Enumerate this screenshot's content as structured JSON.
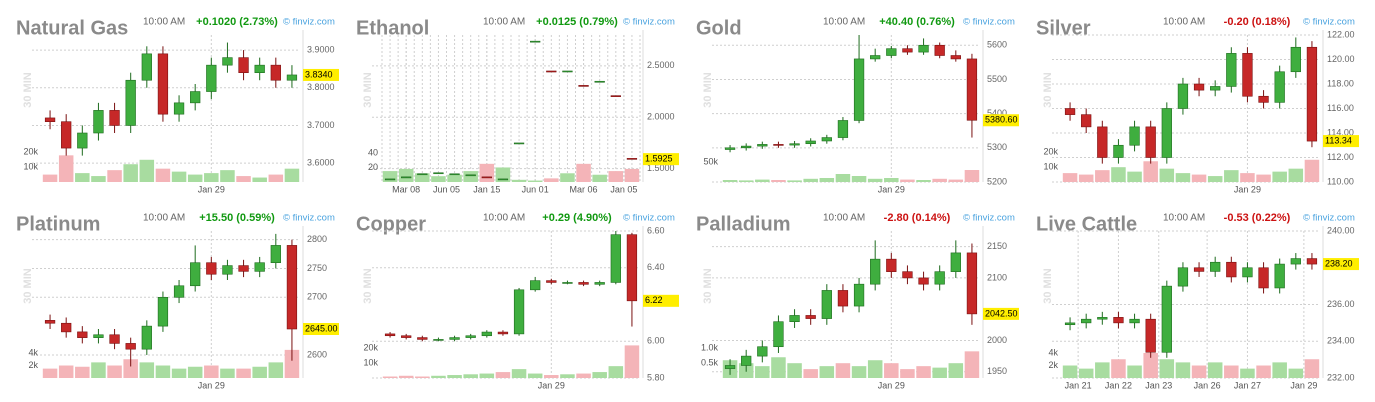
{
  "chart_data": [
    {
      "type": "candlestick",
      "title": "Natural Gas",
      "time": "10:00 AM",
      "change": "+0.1020 (2.73%)",
      "change_color": "#119911",
      "source": "© finviz.com",
      "interval": "30 MIN",
      "up_color": "#3fae3f",
      "down_color": "#c62828",
      "volume_up_color": "#a8dca0",
      "volume_down_color": "#f4b4b8",
      "ylim": [
        3.55,
        3.94
      ],
      "yticks": [
        {
          "value": 3.6,
          "label": "3.6000"
        },
        {
          "value": 3.7,
          "label": "3.7000"
        },
        {
          "value": 3.8,
          "label": "3.8000"
        },
        {
          "value": 3.9,
          "label": "3.9000"
        }
      ],
      "xticks": [
        {
          "value": 10,
          "label": "Jan 29"
        }
      ],
      "last_price": {
        "value": 3.834,
        "label": "3.8340"
      },
      "volume_ylim": [
        0,
        27000
      ],
      "volume_yticks": [
        {
          "value": 10000,
          "label": "10k"
        },
        {
          "value": 20000,
          "label": "20k"
        }
      ],
      "open": [
        3.72,
        3.71,
        3.64,
        3.68,
        3.74,
        3.7,
        3.82,
        3.89,
        3.73,
        3.76,
        3.79,
        3.86,
        3.88,
        3.84,
        3.86,
        3.82
      ],
      "high": [
        3.74,
        3.73,
        3.7,
        3.76,
        3.76,
        3.84,
        3.91,
        3.91,
        3.78,
        3.81,
        3.88,
        3.92,
        3.9,
        3.88,
        3.88,
        3.86
      ],
      "low": [
        3.69,
        3.62,
        3.62,
        3.66,
        3.68,
        3.68,
        3.8,
        3.71,
        3.71,
        3.74,
        3.77,
        3.84,
        3.82,
        3.82,
        3.8,
        3.8
      ],
      "close": [
        3.71,
        3.64,
        3.68,
        3.74,
        3.7,
        3.82,
        3.89,
        3.73,
        3.76,
        3.79,
        3.86,
        3.88,
        3.84,
        3.86,
        3.82,
        3.834
      ],
      "volume": [
        5000,
        18000,
        6000,
        4000,
        8000,
        12000,
        15000,
        9000,
        7000,
        5000,
        6000,
        8000,
        4000,
        3000,
        5000,
        9000
      ]
    },
    {
      "type": "candlestick",
      "title": "Ethanol",
      "time": "10:00 AM",
      "change": "+0.0125 (0.79%)",
      "change_color": "#119911",
      "source": "© finviz.com",
      "interval": "30 MIN",
      "up_color": "#3fae3f",
      "down_color": "#c62828",
      "volume_up_color": "#a8dca0",
      "volume_down_color": "#f4b4b8",
      "x_grid_dense": true,
      "ylim": [
        1.37,
        2.8
      ],
      "yticks": [
        {
          "value": 1.5,
          "label": "1.5000"
        },
        {
          "value": 2.0,
          "label": "2.0000"
        },
        {
          "value": 2.5,
          "label": "2.5000"
        }
      ],
      "xticks": [
        {
          "value": 1,
          "label": "Mar 08"
        },
        {
          "value": 3.5,
          "label": "Jun 05"
        },
        {
          "value": 6,
          "label": "Jan 15"
        },
        {
          "value": 9,
          "label": "Jun 01"
        },
        {
          "value": 12,
          "label": "Mar 06"
        },
        {
          "value": 14.5,
          "label": "Jan 05"
        }
      ],
      "last_price": {
        "value": 1.5925,
        "label": "1.5925"
      },
      "volume_ylim": [
        0,
        55
      ],
      "volume_yticks": [
        20,
        40
      ],
      "open": [
        1.4,
        1.41,
        1.45,
        1.46,
        1.45,
        1.44,
        1.42,
        1.4,
        1.75,
        2.74,
        2.45,
        2.45,
        2.31,
        2.35,
        2.21,
        1.6
      ],
      "high": [
        1.4,
        1.42,
        1.45,
        1.46,
        1.45,
        1.44,
        1.42,
        1.4,
        1.75,
        2.74,
        2.45,
        2.45,
        2.31,
        2.35,
        2.21,
        1.6
      ],
      "low": [
        1.4,
        1.41,
        1.45,
        1.46,
        1.45,
        1.44,
        1.41,
        1.4,
        1.75,
        2.74,
        2.44,
        2.45,
        2.3,
        2.35,
        2.2,
        1.5925
      ],
      "close": [
        1.4,
        1.42,
        1.45,
        1.46,
        1.45,
        1.44,
        1.41,
        1.4,
        1.75,
        2.74,
        2.44,
        2.45,
        2.3,
        2.35,
        2.2,
        1.5925
      ],
      "volume": [
        15,
        18,
        12,
        8,
        10,
        15,
        25,
        20,
        3,
        2,
        5,
        12,
        25,
        10,
        15,
        18
      ]
    },
    {
      "type": "candlestick",
      "title": "Gold",
      "time": "10:00 AM",
      "change": "+40.40 (0.76%)",
      "change_color": "#119911",
      "source": "© finviz.com",
      "interval": "30 MIN",
      "up_color": "#3fae3f",
      "down_color": "#c62828",
      "volume_up_color": "#a8dca0",
      "volume_down_color": "#f4b4b8",
      "ylim": [
        5200,
        5630
      ],
      "yticks": [
        5200,
        5300,
        5400,
        5500,
        5600
      ],
      "xticks": [
        {
          "value": 10,
          "label": "Jan 29"
        }
      ],
      "last_price": {
        "value": 5380.6,
        "label": "5380.60"
      },
      "volume_ylim": [
        0,
        100000
      ],
      "volume_yticks": [
        {
          "value": 50000,
          "label": "50k"
        }
      ],
      "open": [
        5295,
        5300,
        5305,
        5310,
        5308,
        5312,
        5320,
        5330,
        5380,
        5560,
        5570,
        5590,
        5580,
        5600,
        5570,
        5560
      ],
      "high": [
        5308,
        5313,
        5318,
        5318,
        5320,
        5328,
        5338,
        5390,
        5630,
        5590,
        5598,
        5600,
        5620,
        5608,
        5585,
        5575
      ],
      "low": [
        5287,
        5292,
        5297,
        5300,
        5300,
        5304,
        5312,
        5322,
        5372,
        5552,
        5562,
        5572,
        5572,
        5562,
        5552,
        5330
      ],
      "close": [
        5300,
        5305,
        5310,
        5308,
        5312,
        5320,
        5330,
        5380,
        5560,
        5570,
        5590,
        5580,
        5600,
        5570,
        5560,
        5380.6
      ],
      "volume": [
        5000,
        4000,
        6000,
        5000,
        4000,
        8000,
        10000,
        20000,
        15000,
        8000,
        10000,
        6000,
        5000,
        8000,
        6000,
        30000
      ]
    },
    {
      "type": "candlestick",
      "title": "Silver",
      "time": "10:00 AM",
      "change": "-0.20 (0.18%)",
      "change_color": "#cc1111",
      "source": "© finviz.com",
      "interval": "30 MIN",
      "up_color": "#3fae3f",
      "down_color": "#c62828",
      "volume_up_color": "#a8dca0",
      "volume_down_color": "#f4b4b8",
      "ylim": [
        110,
        122
      ],
      "yticks": [
        {
          "value": 110,
          "label": "110.00"
        },
        {
          "value": 112,
          "label": "112.00"
        },
        {
          "value": 114,
          "label": "114.00"
        },
        {
          "value": 116,
          "label": "116.00"
        },
        {
          "value": 118,
          "label": "118.00"
        },
        {
          "value": 120,
          "label": "120.00"
        },
        {
          "value": 122,
          "label": "122.00"
        }
      ],
      "xticks": [
        {
          "value": 11,
          "label": "Jan 29"
        }
      ],
      "last_price": {
        "value": 113.34,
        "label": "113.34"
      },
      "volume_ylim": [
        0,
        27000
      ],
      "volume_yticks": [
        {
          "value": 10000,
          "label": "10k"
        },
        {
          "value": 20000,
          "label": "20k"
        }
      ],
      "open": [
        116,
        115.5,
        114.5,
        112,
        113,
        114.5,
        112,
        116,
        118,
        117.5,
        117.8,
        120.5,
        117,
        116.5,
        119,
        121
      ],
      "high": [
        116.5,
        116,
        115,
        113.5,
        115,
        115,
        116.5,
        118.5,
        118.5,
        118.3,
        121,
        121,
        117.5,
        119.5,
        121.8,
        121.5
      ],
      "low": [
        115,
        114,
        111.5,
        111.5,
        112.5,
        111.5,
        111.5,
        115.5,
        117,
        117,
        117.3,
        116.5,
        116,
        116,
        118.5,
        112.84
      ],
      "close": [
        115.5,
        114.5,
        112,
        113,
        114.5,
        112,
        116,
        118,
        117.5,
        117.8,
        120.5,
        117,
        116.5,
        119,
        121,
        113.34
      ],
      "volume": [
        6000,
        5000,
        8000,
        10000,
        7000,
        14000,
        9000,
        6000,
        5000,
        4000,
        8000,
        6000,
        5000,
        7000,
        9000,
        15000
      ]
    },
    {
      "type": "candlestick",
      "title": "Platinum",
      "time": "10:00 AM",
      "change": "+15.50 (0.59%)",
      "change_color": "#119911",
      "source": "© finviz.com",
      "interval": "30 MIN",
      "up_color": "#3fae3f",
      "down_color": "#c62828",
      "volume_up_color": "#a8dca0",
      "volume_down_color": "#f4b4b8",
      "ylim": [
        2560,
        2815
      ],
      "yticks": [
        2600,
        2700,
        2750,
        2800
      ],
      "xticks": [
        {
          "value": 10,
          "label": "Jan 29"
        }
      ],
      "last_price": {
        "value": 2645,
        "label": "2645.00"
      },
      "volume_ylim": [
        0,
        6400
      ],
      "volume_yticks": [
        {
          "value": 2000,
          "label": "2k"
        },
        {
          "value": 4000,
          "label": "4k"
        }
      ],
      "open": [
        2660,
        2655,
        2640,
        2630,
        2635,
        2620,
        2610,
        2650,
        2700,
        2720,
        2760,
        2740,
        2755,
        2745,
        2760,
        2790
      ],
      "high": [
        2670,
        2665,
        2650,
        2645,
        2645,
        2630,
        2660,
        2710,
        2730,
        2790,
        2770,
        2765,
        2765,
        2770,
        2810,
        2800
      ],
      "low": [
        2645,
        2630,
        2620,
        2620,
        2610,
        2580,
        2600,
        2640,
        2690,
        2710,
        2730,
        2730,
        2735,
        2735,
        2750,
        2590
      ],
      "close": [
        2655,
        2640,
        2630,
        2635,
        2620,
        2610,
        2650,
        2700,
        2720,
        2760,
        2740,
        2755,
        2745,
        2760,
        2790,
        2645
      ],
      "volume": [
        1500,
        2000,
        1800,
        2500,
        2000,
        3000,
        2500,
        2000,
        1500,
        1800,
        2000,
        1500,
        1500,
        1800,
        2500,
        4500
      ]
    },
    {
      "type": "candlestick",
      "title": "Copper",
      "time": "10:00 AM",
      "change": "+0.29 (4.90%)",
      "change_color": "#119911",
      "source": "© finviz.com",
      "interval": "30 MIN",
      "up_color": "#3fae3f",
      "down_color": "#c62828",
      "volume_up_color": "#a8dca0",
      "volume_down_color": "#f4b4b8",
      "ylim": [
        5.8,
        6.6
      ],
      "yticks": [
        {
          "value": 5.8,
          "label": "5.80"
        },
        {
          "value": 6.0,
          "label": "6.00"
        },
        {
          "value": 6.4,
          "label": "6.40"
        },
        {
          "value": 6.6,
          "label": "6.60"
        }
      ],
      "xticks": [
        {
          "value": 10,
          "label": "Jan 29"
        }
      ],
      "last_price": {
        "value": 6.22,
        "label": "6.22"
      },
      "volume_ylim": [
        0,
        27000
      ],
      "volume_yticks": [
        {
          "value": 10000,
          "label": "10k"
        },
        {
          "value": 20000,
          "label": "20k"
        }
      ],
      "open": [
        6.04,
        6.03,
        6.02,
        6.01,
        6.01,
        6.02,
        6.03,
        6.05,
        6.04,
        6.28,
        6.33,
        6.32,
        6.32,
        6.31,
        6.32,
        6.58
      ],
      "high": [
        6.05,
        6.04,
        6.03,
        6.02,
        6.03,
        6.04,
        6.06,
        6.06,
        6.29,
        6.35,
        6.34,
        6.33,
        6.33,
        6.33,
        6.6,
        6.59
      ],
      "low": [
        6.02,
        6.01,
        6.0,
        6.0,
        6.0,
        6.01,
        6.02,
        6.03,
        6.03,
        6.27,
        6.31,
        6.31,
        6.3,
        6.3,
        6.31,
        6.08
      ],
      "close": [
        6.03,
        6.02,
        6.01,
        6.01,
        6.02,
        6.03,
        6.05,
        6.04,
        6.28,
        6.33,
        6.32,
        6.32,
        6.31,
        6.32,
        6.58,
        6.22
      ],
      "volume": [
        1000,
        1500,
        1000,
        1500,
        2000,
        2500,
        3000,
        4000,
        6000,
        3000,
        2000,
        2500,
        3000,
        4000,
        8000,
        22000
      ]
    },
    {
      "type": "candlestick",
      "title": "Palladium",
      "time": "10:00 AM",
      "change": "-2.80 (0.14%)",
      "change_color": "#cc1111",
      "source": "© finviz.com",
      "interval": "30 MIN",
      "up_color": "#3fae3f",
      "down_color": "#c62828",
      "volume_up_color": "#a8dca0",
      "volume_down_color": "#f4b4b8",
      "ylim": [
        1940,
        2175
      ],
      "yticks": [
        1950,
        2000,
        2100,
        2150
      ],
      "xticks": [
        {
          "value": 10,
          "label": "Jan 29"
        }
      ],
      "last_price": {
        "value": 2042.5,
        "label": "2042.50"
      },
      "volume_ylim": [
        0,
        1350
      ],
      "volume_yticks": [
        {
          "value": 500,
          "label": "0.5k"
        },
        {
          "value": 1000,
          "label": "1.0k"
        }
      ],
      "open": [
        1955,
        1960,
        1975,
        1990,
        2030,
        2040,
        2035,
        2080,
        2055,
        2090,
        2130,
        2110,
        2100,
        2090,
        2110,
        2140
      ],
      "high": [
        1970,
        1985,
        2000,
        2040,
        2050,
        2050,
        2090,
        2090,
        2100,
        2160,
        2140,
        2120,
        2110,
        2120,
        2160,
        2155
      ],
      "low": [
        1945,
        1950,
        1965,
        1980,
        2020,
        2025,
        2025,
        2045,
        2045,
        2080,
        2100,
        2090,
        2080,
        2080,
        2100,
        2025
      ],
      "close": [
        1960,
        1975,
        1990,
        2030,
        2040,
        2035,
        2080,
        2055,
        2090,
        2130,
        2110,
        2100,
        2090,
        2110,
        2140,
        2042.5
      ],
      "volume": [
        600,
        500,
        400,
        700,
        500,
        300,
        400,
        500,
        400,
        600,
        500,
        300,
        400,
        350,
        500,
        900
      ]
    },
    {
      "type": "candlestick",
      "title": "Live Cattle",
      "time": "10:00 AM",
      "change": "-0.53 (0.22%)",
      "change_color": "#cc1111",
      "source": "© finviz.com",
      "interval": "30 MIN",
      "up_color": "#3fae3f",
      "down_color": "#c62828",
      "volume_up_color": "#a8dca0",
      "volume_down_color": "#f4b4b8",
      "ylim": [
        232,
        240
      ],
      "yticks": [
        {
          "value": 232,
          "label": "232.00"
        },
        {
          "value": 234,
          "label": "234.00"
        },
        {
          "value": 236,
          "label": "236.00"
        },
        {
          "value": 240,
          "label": "240.00"
        }
      ],
      "xticks": [
        {
          "value": 0.5,
          "label": "Jan 21"
        },
        {
          "value": 3,
          "label": "Jan 22"
        },
        {
          "value": 5.5,
          "label": "Jan 23"
        },
        {
          "value": 8.5,
          "label": "Jan 26"
        },
        {
          "value": 11,
          "label": "Jan 27"
        },
        {
          "value": 14.5,
          "label": "Jan 29"
        }
      ],
      "last_price": {
        "value": 238.2,
        "label": "238.20"
      },
      "volume_ylim": [
        0,
        6400
      ],
      "volume_yticks": [
        {
          "value": 2000,
          "label": "2k"
        },
        {
          "value": 4000,
          "label": "4k"
        }
      ],
      "open": [
        234.9,
        235.0,
        235.2,
        235.3,
        235.0,
        235.2,
        233.4,
        237.0,
        238.0,
        237.8,
        238.3,
        237.5,
        238.0,
        236.9,
        238.2,
        238.5
      ],
      "high": [
        235.3,
        235.5,
        235.6,
        235.6,
        235.5,
        235.5,
        237.3,
        238.3,
        238.3,
        238.6,
        238.6,
        238.3,
        238.3,
        238.5,
        238.8,
        238.8
      ],
      "low": [
        234.6,
        234.7,
        234.9,
        234.7,
        234.7,
        233.1,
        233.1,
        236.7,
        237.5,
        237.5,
        237.2,
        237.2,
        236.6,
        236.6,
        237.9,
        237.9
      ],
      "close": [
        235.0,
        235.2,
        235.3,
        235.0,
        235.2,
        233.4,
        237.0,
        238.0,
        237.8,
        238.3,
        237.5,
        238.0,
        236.9,
        238.2,
        238.5,
        238.2
      ],
      "volume": [
        2000,
        1500,
        2500,
        3000,
        2000,
        4000,
        3000,
        2500,
        2000,
        2500,
        2000,
        1500,
        2000,
        2500,
        1500,
        3000
      ]
    }
  ]
}
